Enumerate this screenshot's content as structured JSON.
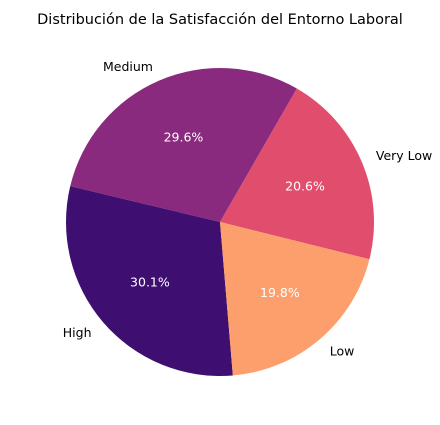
{
  "chart_data": {
    "type": "pie",
    "title": "Distribución de la Satisfacción del Entorno Laboral",
    "slices": [
      {
        "label": "Very Low",
        "value": 20.6,
        "pct_label": "20.6%",
        "color": "#e14d6d"
      },
      {
        "label": "Medium",
        "value": 29.6,
        "pct_label": "29.6%",
        "color": "#8a2a7f"
      },
      {
        "label": "High",
        "value": 30.1,
        "pct_label": "30.1%",
        "color": "#3e0f70"
      },
      {
        "label": "Low",
        "value": 19.8,
        "pct_label": "19.8%",
        "color": "#fd9f6c"
      }
    ],
    "legend": "none"
  }
}
